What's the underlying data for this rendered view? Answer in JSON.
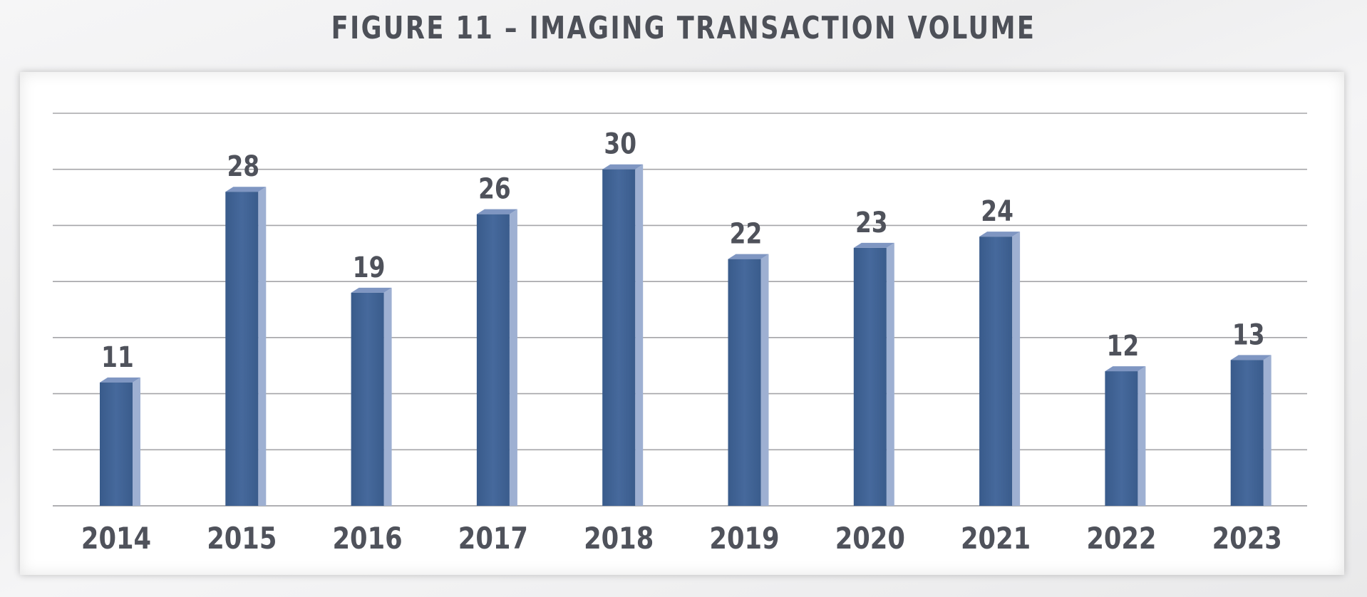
{
  "title": "FIGURE 11 – IMAGING TRANSACTION VOLUME",
  "chart_data": {
    "type": "bar",
    "title": "FIGURE 11 – IMAGING TRANSACTION VOLUME",
    "categories": [
      "2014",
      "2015",
      "2016",
      "2017",
      "2018",
      "2019",
      "2020",
      "2021",
      "2022",
      "2023"
    ],
    "values": [
      11,
      28,
      19,
      26,
      30,
      22,
      23,
      24,
      12,
      13
    ],
    "xlabel": "",
    "ylabel": "",
    "ylim": [
      0,
      35
    ],
    "grid": true,
    "y_tick_labels_visible": false,
    "data_labels": true,
    "legend": "none",
    "colors": {
      "bar_front": "#44699c",
      "bar_side": "#9eb0d2",
      "bar_top": "#7f96c2",
      "gridline": "#a5a5a8",
      "text": "#4f525b"
    }
  }
}
